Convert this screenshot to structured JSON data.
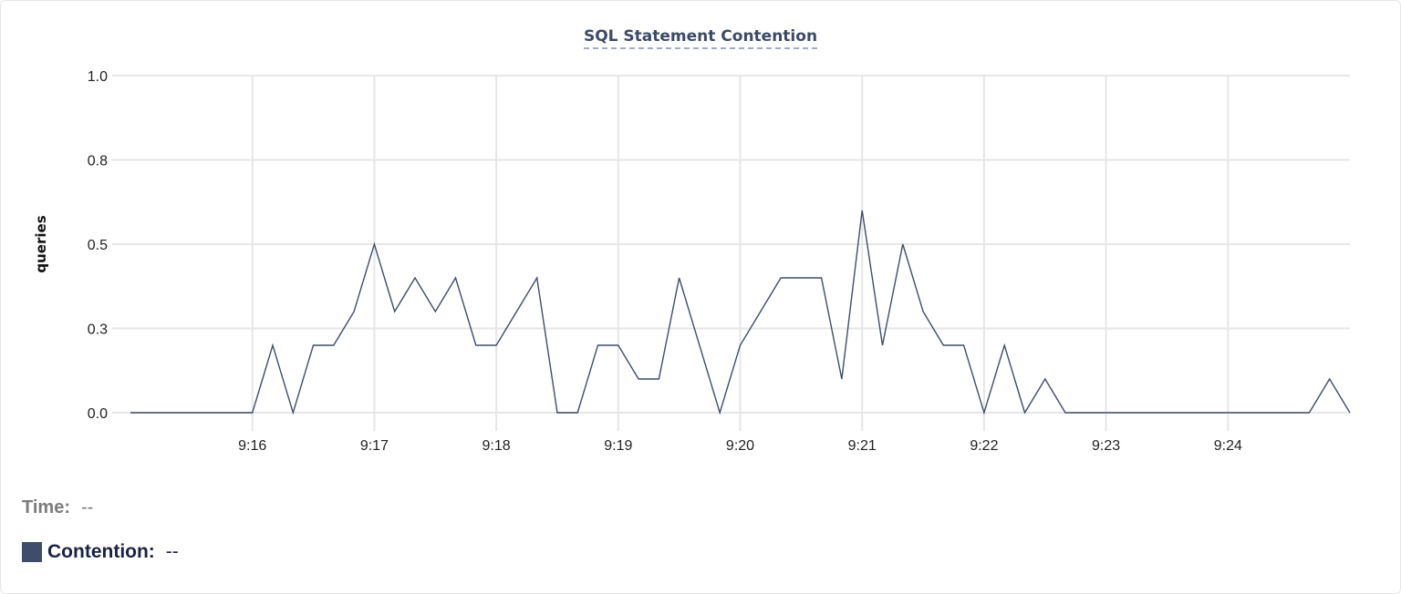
{
  "chart_data": {
    "type": "line",
    "title": "SQL Statement Contention",
    "ylabel": "queries",
    "xlabel": "",
    "ylim": [
      0,
      1.0
    ],
    "y_ticks": [
      0,
      0.25,
      0.5,
      0.75,
      1.0
    ],
    "y_tick_labels": [
      "0.0",
      "0.3",
      "0.5",
      "0.8",
      "1.0"
    ],
    "x_range": [
      "9:15:00",
      "9:25:00"
    ],
    "x_ticks": [
      "9:16",
      "9:17",
      "9:18",
      "9:19",
      "9:20",
      "9:21",
      "9:22",
      "9:23",
      "9:24"
    ],
    "x_interval_seconds": 10,
    "grid": true,
    "line_color": "#3f4d6b",
    "series": [
      {
        "values": [
          0,
          0,
          0,
          0,
          0,
          0,
          0,
          0.2,
          0,
          0.2,
          0.2,
          0.3,
          0.5,
          0.3,
          0.4,
          0.3,
          0.4,
          0.2,
          0.2,
          0.3,
          0.4,
          0,
          0,
          0.2,
          0.2,
          0.1,
          0.1,
          0.4,
          0.2,
          0,
          0.2,
          0.3,
          0.4,
          0.4,
          0.4,
          0.1,
          0.6,
          0.2,
          0.5,
          0.3,
          0.2,
          0.2,
          0,
          0.2,
          0,
          0.1,
          0,
          0,
          0,
          0,
          0,
          0,
          0,
          0,
          0,
          0,
          0,
          0,
          0,
          0.1,
          0
        ]
      }
    ]
  },
  "legend": {
    "time_label": "Time:",
    "time_value": "--",
    "series_label": "Contention:",
    "series_value": "--",
    "swatch_color": "#3f4d6b"
  }
}
